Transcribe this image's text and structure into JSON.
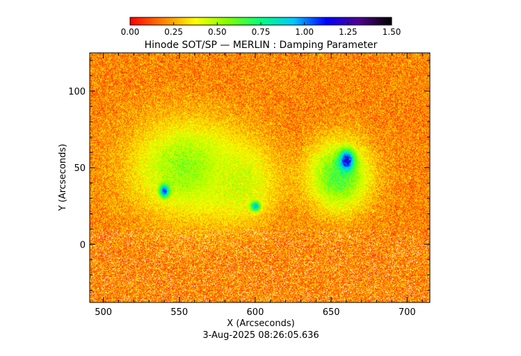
{
  "chart_data": {
    "type": "heatmap",
    "title": "Hinode SOT/SP — MERLIN : Damping Parameter",
    "xlabel": "X (Arcseconds)",
    "ylabel": "Y (Arcseconds)",
    "timestamp": "3-Aug-2025 08:26:05.636",
    "xlim": [
      491,
      715
    ],
    "ylim": [
      -38,
      125
    ],
    "x_ticks": [
      500,
      550,
      600,
      650,
      700
    ],
    "y_ticks": [
      0,
      50,
      100
    ],
    "colorbar": {
      "range": [
        0.0,
        1.5
      ],
      "tick_values": [
        0.0,
        0.25,
        0.5,
        0.75,
        1.0,
        1.25,
        1.5
      ],
      "tick_labels": [
        "0.00",
        "0.25",
        "0.50",
        "0.75",
        "1.00",
        "1.25",
        "1.50"
      ],
      "colors": [
        "#ff0000",
        "#ff8000",
        "#ffff00",
        "#80ff00",
        "#00ff80",
        "#00c8ff",
        "#0000ff",
        "#500090",
        "#000000"
      ]
    },
    "background_value": 0.2,
    "regions": [
      {
        "name": "plage",
        "x": 555,
        "y": 50,
        "rx": 45,
        "ry": 38,
        "value": 0.55
      },
      {
        "name": "plage",
        "x": 590,
        "y": 40,
        "rx": 30,
        "ry": 30,
        "value": 0.45
      },
      {
        "name": "sunspot",
        "x": 655,
        "y": 45,
        "rx": 25,
        "ry": 28,
        "value": 0.65
      },
      {
        "name": "sunspot-umbra",
        "x": 660,
        "y": 55,
        "rx": 6,
        "ry": 8,
        "value": 1.2
      },
      {
        "name": "pore",
        "x": 540,
        "y": 35,
        "rx": 4,
        "ry": 5,
        "value": 1.1
      },
      {
        "name": "pore",
        "x": 600,
        "y": 25,
        "rx": 4,
        "ry": 4,
        "value": 0.95
      }
    ]
  }
}
